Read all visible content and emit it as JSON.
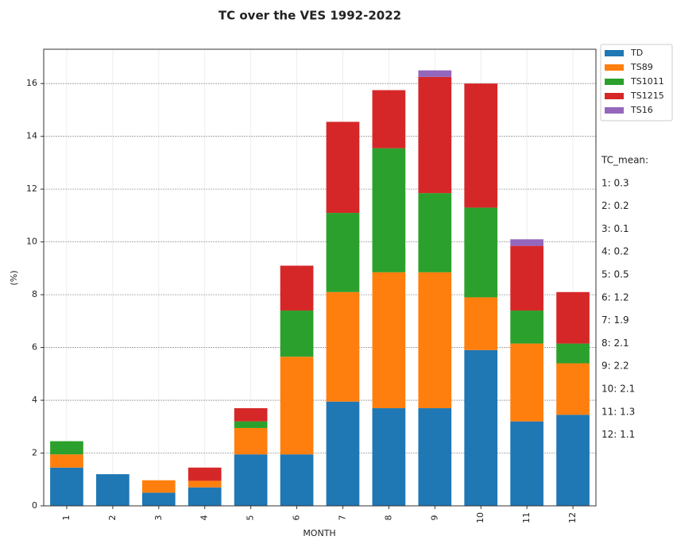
{
  "chart_data": {
    "type": "stacked_bar",
    "title": "TC over the VES 1992-2022",
    "xlabel": "MONTH",
    "ylabel": "(%)",
    "categories": [
      "1",
      "2",
      "3",
      "4",
      "5",
      "6",
      "7",
      "8",
      "9",
      "10",
      "11",
      "12"
    ],
    "series": [
      {
        "name": "TD",
        "color": "#1f77b4",
        "values": [
          1.45,
          1.2,
          0.5,
          0.7,
          1.95,
          1.95,
          3.95,
          3.7,
          3.7,
          5.9,
          3.2,
          3.45
        ]
      },
      {
        "name": "TS89",
        "color": "#ff7f0e",
        "values": [
          0.5,
          0,
          0.47,
          0.25,
          1.0,
          3.7,
          4.15,
          5.15,
          5.15,
          2.0,
          2.95,
          1.95
        ]
      },
      {
        "name": "TS1011",
        "color": "#2ca02c",
        "values": [
          0.5,
          0,
          0,
          0,
          0.25,
          1.75,
          3.0,
          4.7,
          3.0,
          3.4,
          1.25,
          0.75
        ]
      },
      {
        "name": "TS1215",
        "color": "#d62728",
        "values": [
          0,
          0,
          0,
          0.5,
          0.5,
          1.7,
          3.45,
          2.2,
          4.4,
          4.7,
          2.45,
          1.95
        ]
      },
      {
        "name": "TS16",
        "color": "#9467bd",
        "values": [
          0,
          0,
          0,
          0,
          0,
          0,
          0,
          0,
          0.25,
          0,
          0.25,
          0
        ]
      }
    ],
    "ylim": [
      0,
      17.3
    ],
    "yticks": [
      0,
      2,
      4,
      6,
      8,
      10,
      12,
      14,
      16
    ],
    "grid": true,
    "legend": "outside upper right",
    "annotations": [
      "TC_mean:",
      "1: 0.3",
      "2: 0.2",
      "3: 0.1",
      "4: 0.2",
      "5: 0.5",
      "6: 1.2",
      "7: 1.9",
      "8: 2.1",
      "9: 2.2",
      "10: 2.1",
      "11: 1.3",
      "12: 1.1"
    ]
  }
}
